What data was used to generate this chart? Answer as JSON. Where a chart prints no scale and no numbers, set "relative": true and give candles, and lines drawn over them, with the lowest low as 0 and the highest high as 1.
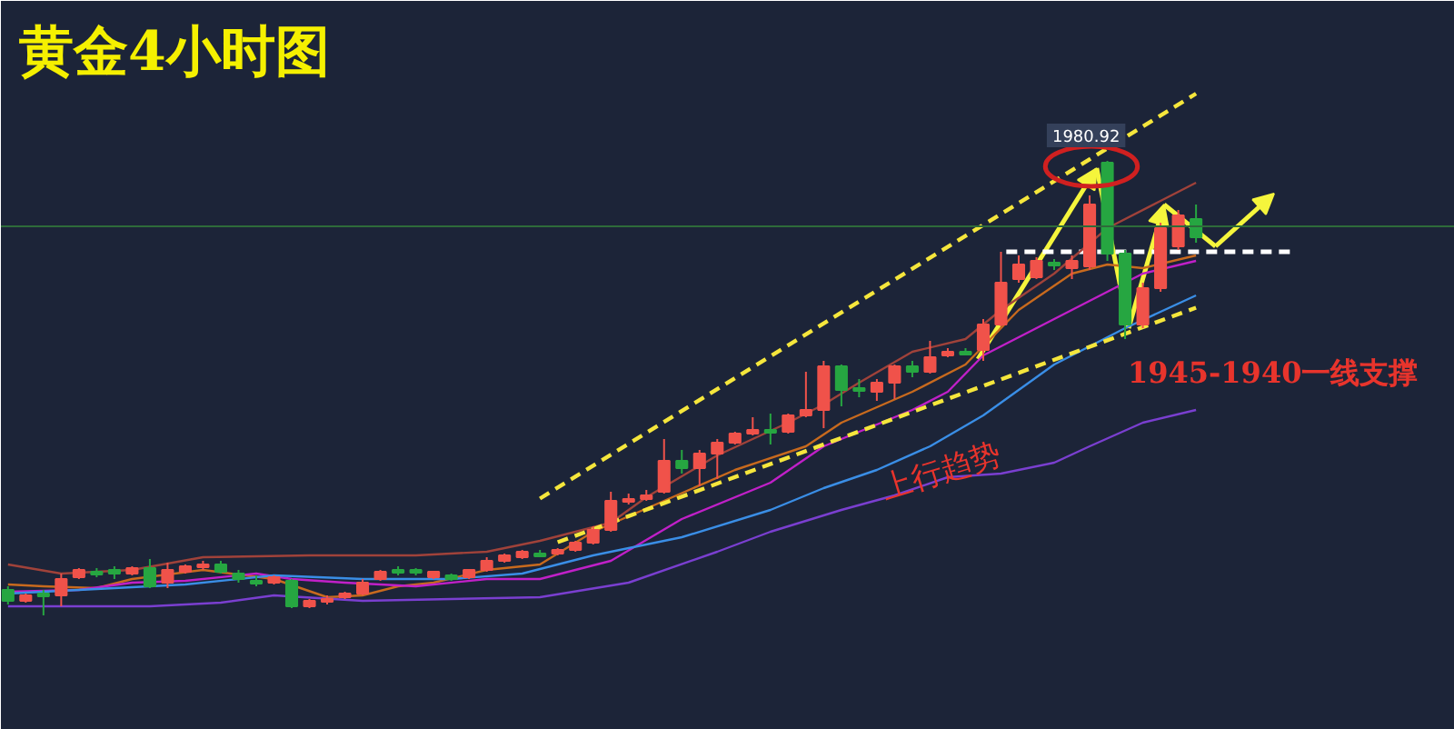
{
  "chart_data": {
    "type": "candlestick",
    "title": "黄金4小时图",
    "relative": true,
    "categories": [
      null,
      null,
      null,
      null,
      null,
      null,
      null,
      null,
      null,
      null,
      null,
      null,
      null,
      null,
      null,
      null,
      null,
      null,
      null,
      null,
      null,
      null,
      null,
      null,
      null,
      null,
      null,
      null,
      null,
      null,
      null,
      null,
      null,
      null,
      null,
      null,
      null,
      null,
      null,
      null,
      null,
      null,
      null,
      null,
      null,
      null,
      null,
      null,
      null,
      null,
      null,
      null,
      null,
      null,
      null,
      null,
      null,
      null,
      null,
      null,
      null,
      null,
      null,
      null,
      null,
      null,
      null,
      null
    ],
    "ohlc": [
      [
        0.056,
        0.064,
        0.024,
        0.032
      ],
      [
        0.032,
        0.048,
        0.028,
        0.044
      ],
      [
        0.048,
        0.056,
        0,
        0.044
      ],
      [
        0.044,
        0.092,
        0.02,
        0.08
      ],
      [
        0.084,
        0.104,
        0.08,
        0.1
      ],
      [
        0.096,
        0.104,
        0.084,
        0.092
      ],
      [
        0.1,
        0.108,
        0.08,
        0.092
      ],
      [
        0.092,
        0.108,
        0.088,
        0.104
      ],
      [
        0.104,
        0.124,
        0.06,
        0.064
      ],
      [
        0.072,
        0.116,
        0.06,
        0.1
      ],
      [
        0.096,
        0.112,
        0.092,
        0.108
      ],
      [
        0.108,
        0.12,
        0.1,
        0.112
      ],
      [
        0.112,
        0.12,
        0.092,
        0.096
      ],
      [
        0.092,
        0.1,
        0.072,
        0.08
      ],
      [
        0.076,
        0.088,
        0.064,
        0.072
      ],
      [
        0.072,
        0.088,
        0.068,
        0.084
      ],
      [
        0.076,
        0.08,
        0.016,
        0.02
      ],
      [
        0.02,
        0.036,
        0.016,
        0.032
      ],
      [
        0.032,
        0.044,
        0.024,
        0.036
      ],
      [
        0.04,
        0.052,
        0.036,
        0.048
      ],
      [
        0.048,
        0.08,
        0.044,
        0.072
      ],
      [
        0.08,
        0.1,
        0.076,
        0.096
      ],
      [
        0.1,
        0.108,
        0.088,
        0.096
      ],
      [
        0.1,
        0.104,
        0.088,
        0.096
      ],
      [
        0.084,
        0.096,
        0.08,
        0.096
      ],
      [
        0.088,
        0.092,
        0.076,
        0.08
      ],
      [
        0.084,
        0.1,
        0.08,
        0.1
      ],
      [
        0.1,
        0.128,
        0.096,
        0.12
      ],
      [
        0.12,
        0.136,
        0.116,
        0.132
      ],
      [
        0.128,
        0.144,
        0.124,
        0.14
      ],
      [
        0.136,
        0.144,
        0.128,
        0.132
      ],
      [
        0.136,
        0.148,
        0.132,
        0.144
      ],
      [
        0.144,
        0.164,
        0.14,
        0.16
      ],
      [
        0.16,
        0.196,
        0.156,
        0.188
      ],
      [
        0.188,
        0.272,
        0.184,
        0.252
      ],
      [
        0.252,
        0.268,
        0.244,
        0.256
      ],
      [
        0.256,
        0.276,
        0.252,
        0.264
      ],
      [
        0.272,
        0.388,
        0.268,
        0.34
      ],
      [
        0.34,
        0.364,
        0.312,
        0.324
      ],
      [
        0.324,
        0.364,
        0.284,
        0.356
      ],
      [
        0.356,
        0.388,
        0.3,
        0.38
      ],
      [
        0.38,
        0.404,
        0.376,
        0.4
      ],
      [
        0.4,
        0.436,
        0.396,
        0.408
      ],
      [
        0.408,
        0.444,
        0.376,
        0.404
      ],
      [
        0.404,
        0.444,
        0.4,
        0.44
      ],
      [
        0.44,
        0.536,
        0.436,
        0.452
      ],
      [
        0.452,
        0.56,
        0.412,
        0.548
      ],
      [
        0.548,
        0.552,
        0.46,
        0.496
      ],
      [
        0.5,
        0.52,
        0.48,
        0.496
      ],
      [
        0.492,
        0.52,
        0.472,
        0.512
      ],
      [
        0.512,
        0.552,
        0.476,
        0.548
      ],
      [
        0.548,
        0.56,
        0.524,
        0.536
      ],
      [
        0.536,
        0.604,
        0.532,
        0.568
      ],
      [
        0.572,
        0.588,
        0.568,
        0.58
      ],
      [
        0.58,
        0.588,
        0.572,
        0.576
      ],
      [
        0.584,
        0.652,
        0.56,
        0.64
      ],
      [
        0.64,
        0.8,
        0.636,
        0.732
      ],
      [
        0.74,
        0.792,
        0.732,
        0.772
      ],
      [
        0.744,
        0.788,
        0.74,
        0.78
      ],
      [
        0.776,
        0.784,
        0.76,
        0.772
      ],
      [
        0.764,
        0.792,
        0.74,
        0.78
      ],
      [
        0.768,
        0.924,
        0.76,
        0.904
      ],
      [
        0.996,
        1,
        0.78,
        0.796
      ],
      [
        0.796,
        0.804,
        0.608,
        0.64
      ],
      [
        0.64,
        0.732,
        0.632,
        0.72
      ],
      [
        0.72,
        0.864,
        0.712,
        0.852
      ],
      [
        0.812,
        0.892,
        0.804,
        0.88
      ],
      [
        0.872,
        0.904,
        0.82,
        0.832
      ]
    ],
    "colors": [
      "#26a641",
      "#f0524a",
      "#26a641",
      "#f0524a",
      "#f0524a",
      "#26a641",
      "#26a641",
      "#f0524a",
      "#26a641",
      "#f0524a",
      "#f0524a",
      "#f0524a",
      "#26a641",
      "#26a641",
      "#26a641",
      "#f0524a",
      "#26a641",
      "#f0524a",
      "#f0524a",
      "#f0524a",
      "#f0524a",
      "#f0524a",
      "#26a641",
      "#26a641",
      "#f0524a",
      "#26a641",
      "#f0524a",
      "#f0524a",
      "#f0524a",
      "#f0524a",
      "#26a641",
      "#f0524a",
      "#f0524a",
      "#f0524a",
      "#f0524a",
      "#f0524a",
      "#f0524a",
      "#f0524a",
      "#26a641",
      "#f0524a",
      "#f0524a",
      "#f0524a",
      "#f0524a",
      "#26a641",
      "#f0524a",
      "#f0524a",
      "#f0524a",
      "#26a641",
      "#26a641",
      "#f0524a",
      "#f0524a",
      "#26a641",
      "#f0524a",
      "#f0524a",
      "#26a641",
      "#f0524a",
      "#f0524a",
      "#f0524a",
      "#f0524a",
      "#26a641",
      "#f0524a",
      "#f0524a",
      "#26a641",
      "#26a641",
      "#f0524a",
      "#f0524a",
      "#f0524a",
      "#26a641"
    ],
    "series": [
      {
        "type": "line",
        "color": "#a0423a",
        "values": [
          0.112,
          null,
          null,
          0.092,
          null,
          null,
          null,
          0.1,
          null,
          null,
          null,
          0.128,
          null,
          null,
          null,
          null,
          null,
          0.132,
          null,
          null,
          null,
          null,
          null,
          0.132,
          null,
          null,
          null,
          0.14,
          null,
          null,
          0.164,
          null,
          null,
          null,
          0.204,
          null,
          0.26,
          null,
          null,
          null,
          0.352,
          null,
          null,
          null,
          0.424,
          null,
          0.464,
          null,
          0.512,
          null,
          null,
          0.58,
          null,
          null,
          0.608,
          null,
          0.672,
          null,
          null,
          0.752,
          null,
          null,
          0.852,
          null,
          null,
          0.912,
          null,
          0.952
        ]
      },
      {
        "type": "line",
        "color": "#c86a1e",
        "values": [
          0.068,
          null,
          0.064,
          null,
          null,
          0.06,
          null,
          0.08,
          null,
          null,
          null,
          0.1,
          null,
          null,
          null,
          0.08,
          null,
          null,
          0.04,
          null,
          0.044,
          null,
          0.064,
          null,
          0.072,
          null,
          null,
          0.1,
          null,
          null,
          0.112,
          null,
          null,
          0.184,
          null,
          null,
          null,
          0.252,
          null,
          null,
          null,
          0.32,
          null,
          null,
          null,
          0.372,
          null,
          0.424,
          null,
          null,
          null,
          0.492,
          null,
          null,
          0.552,
          null,
          null,
          0.672,
          null,
          null,
          0.752,
          null,
          0.772,
          null,
          0.764,
          null,
          null,
          0.792
        ]
      },
      {
        "type": "line",
        "color": "#c020c8",
        "values": [
          0.052,
          null,
          null,
          null,
          0.056,
          null,
          null,
          0.072,
          null,
          null,
          0.076,
          null,
          null,
          null,
          0.092,
          null,
          0.08,
          null,
          null,
          0.072,
          null,
          null,
          null,
          0.064,
          null,
          null,
          null,
          0.08,
          null,
          null,
          0.08,
          null,
          null,
          null,
          0.12,
          null,
          null,
          null,
          0.212,
          null,
          null,
          null,
          null,
          0.292,
          null,
          null,
          0.372,
          null,
          null,
          null,
          null,
          0.452,
          null,
          0.492,
          null,
          0.572,
          null,
          null,
          0.632,
          null,
          null,
          0.692,
          null,
          null,
          0.752,
          null,
          null,
          0.78
        ]
      },
      {
        "type": "line",
        "color": "#3a8ee6",
        "values": [
          0.048,
          null,
          null,
          null,
          null,
          null,
          0.06,
          null,
          null,
          null,
          0.068,
          null,
          null,
          null,
          null,
          0.088,
          null,
          null,
          null,
          null,
          0.08,
          null,
          null,
          null,
          null,
          0.08,
          null,
          null,
          null,
          0.092,
          null,
          null,
          null,
          0.132,
          null,
          null,
          null,
          null,
          0.172,
          null,
          null,
          null,
          null,
          0.232,
          null,
          null,
          0.28,
          null,
          null,
          0.32,
          null,
          null,
          0.372,
          null,
          null,
          0.44,
          null,
          null,
          null,
          0.552,
          null,
          null,
          null,
          0.632,
          null,
          null,
          null,
          0.704
        ]
      },
      {
        "type": "line",
        "color": "#7a3fd0",
        "values": [
          0.02,
          null,
          null,
          null,
          0.02,
          null,
          null,
          null,
          0.02,
          null,
          null,
          null,
          0.028,
          null,
          null,
          0.044,
          null,
          null,
          null,
          null,
          0.032,
          null,
          null,
          null,
          null,
          0.036,
          null,
          null,
          null,
          null,
          0.04,
          null,
          null,
          null,
          null,
          0.072,
          null,
          null,
          null,
          null,
          0.14,
          null,
          null,
          0.184,
          null,
          null,
          null,
          0.232,
          null,
          null,
          0.264,
          null,
          null,
          0.304,
          null,
          null,
          0.312,
          null,
          null,
          0.336,
          null,
          0.372,
          null,
          null,
          0.424,
          null,
          null,
          0.452
        ]
      },
      {
        "type": "line",
        "line_style": "dashed",
        "color": "#f5e63c",
        "values": [
          null,
          null,
          null,
          null,
          null,
          null,
          null,
          null,
          null,
          null,
          null,
          null,
          null,
          null,
          null,
          null,
          null,
          null,
          null,
          null,
          null,
          null,
          null,
          null,
          null,
          null,
          null,
          null,
          null,
          null,
          0.257,
          null,
          null,
          null,
          null,
          null,
          null,
          null,
          null,
          null,
          null,
          null,
          null,
          null,
          null,
          null,
          null,
          null,
          null,
          null,
          null,
          null,
          null,
          null,
          null,
          null,
          null,
          null,
          null,
          null,
          null,
          null,
          null,
          null,
          null,
          null,
          null,
          1.148
        ]
      },
      {
        "type": "line",
        "line_style": "dashed",
        "color": "#f5e63c",
        "values": [
          null,
          null,
          null,
          null,
          null,
          null,
          null,
          null,
          null,
          null,
          null,
          null,
          null,
          null,
          null,
          null,
          null,
          null,
          null,
          null,
          null,
          null,
          null,
          null,
          null,
          null,
          null,
          null,
          null,
          null,
          null,
          0.161,
          null,
          null,
          null,
          null,
          null,
          null,
          null,
          null,
          null,
          null,
          null,
          null,
          null,
          null,
          null,
          null,
          null,
          null,
          null,
          null,
          null,
          null,
          null,
          null,
          null,
          null,
          null,
          null,
          null,
          null,
          null,
          null,
          null,
          null,
          null,
          0.677
        ]
      }
    ],
    "ref_lines": [
      {
        "axis": "y",
        "value": 0.856,
        "color": "#2e6b3a",
        "line_style": "solid"
      },
      {
        "axis": "y",
        "value": 0.8,
        "color": "#ffffff",
        "line_style": "dashed"
      }
    ],
    "annotations": [
      "1980.92",
      "1945-1940一线支撑",
      "上行趋势"
    ]
  }
}
